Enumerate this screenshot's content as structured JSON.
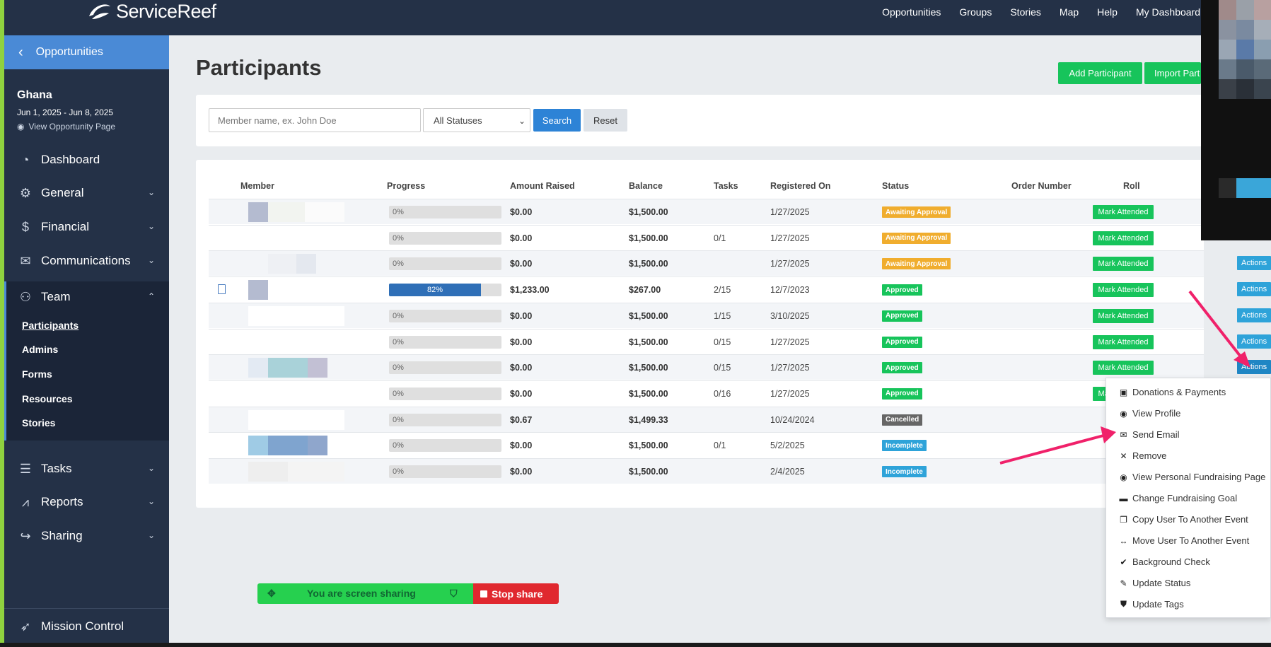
{
  "topbar": {
    "logo": "ServiceReef",
    "nav": [
      "Opportunities",
      "Groups",
      "Stories",
      "Map",
      "Help",
      "My Dashboard"
    ]
  },
  "sidebar": {
    "back_label": "Opportunities",
    "event_title": "Ghana",
    "event_dates": "Jun 1, 2025 - Jun 8, 2025",
    "event_link": "View Opportunity Page",
    "items": [
      {
        "label": "Dashboard",
        "icon": "dashboard-icon"
      },
      {
        "label": "General",
        "icon": "gear-icon"
      },
      {
        "label": "Financial",
        "icon": "dollar-icon"
      },
      {
        "label": "Communications",
        "icon": "envelope-icon"
      },
      {
        "label": "Team",
        "icon": "users-icon"
      },
      {
        "label": "Tasks",
        "icon": "tasks-icon"
      },
      {
        "label": "Reports",
        "icon": "chart-icon"
      },
      {
        "label": "Sharing",
        "icon": "share-icon"
      }
    ],
    "team_sub": [
      "Participants",
      "Admins",
      "Forms",
      "Resources",
      "Stories"
    ],
    "mission_control": "Mission Control"
  },
  "main": {
    "title": "Participants",
    "add_participant": "Add Participant",
    "import_participants": "Import Part",
    "search_placeholder": "Member name, ex. John Doe",
    "status_select": "All Statuses",
    "search_btn": "Search",
    "reset_btn": "Reset"
  },
  "table": {
    "headers": [
      "Member",
      "Progress",
      "Amount Raised",
      "Balance",
      "Tasks",
      "Registered On",
      "Status",
      "Order Number",
      "Roll"
    ],
    "mark_label": "Mark Attended",
    "actions_label": "Actions",
    "rows": [
      {
        "progress": "0%",
        "pct": 0,
        "raised": "$0.00",
        "balance": "$1,500.00",
        "tasks": "",
        "registered": "1/27/2025",
        "status": "Awaiting Approval",
        "status_color": "#f0ad2e"
      },
      {
        "progress": "0%",
        "pct": 0,
        "raised": "$0.00",
        "balance": "$1,500.00",
        "tasks": "0/1",
        "registered": "1/27/2025",
        "status": "Awaiting Approval",
        "status_color": "#f0ad2e"
      },
      {
        "progress": "0%",
        "pct": 0,
        "raised": "$0.00",
        "balance": "$1,500.00",
        "tasks": "",
        "registered": "1/27/2025",
        "status": "Awaiting Approval",
        "status_color": "#f0ad2e"
      },
      {
        "progress": "82%",
        "pct": 82,
        "raised": "$1,233.00",
        "balance": "$267.00",
        "tasks": "2/15",
        "registered": "12/7/2023",
        "status": "Approved",
        "status_color": "#17c45b"
      },
      {
        "progress": "0%",
        "pct": 0,
        "raised": "$0.00",
        "balance": "$1,500.00",
        "tasks": "1/15",
        "registered": "3/10/2025",
        "status": "Approved",
        "status_color": "#17c45b"
      },
      {
        "progress": "0%",
        "pct": 0,
        "raised": "$0.00",
        "balance": "$1,500.00",
        "tasks": "0/15",
        "registered": "1/27/2025",
        "status": "Approved",
        "status_color": "#17c45b"
      },
      {
        "progress": "0%",
        "pct": 0,
        "raised": "$0.00",
        "balance": "$1,500.00",
        "tasks": "0/15",
        "registered": "1/27/2025",
        "status": "Approved",
        "status_color": "#17c45b"
      },
      {
        "progress": "0%",
        "pct": 0,
        "raised": "$0.00",
        "balance": "$1,500.00",
        "tasks": "0/16",
        "registered": "1/27/2025",
        "status": "Approved",
        "status_color": "#17c45b"
      },
      {
        "progress": "0%",
        "pct": 0,
        "raised": "$0.67",
        "balance": "$1,499.33",
        "tasks": "",
        "registered": "10/24/2024",
        "status": "Cancelled",
        "status_color": "#666666"
      },
      {
        "progress": "0%",
        "pct": 0,
        "raised": "$0.00",
        "balance": "$1,500.00",
        "tasks": "0/1",
        "registered": "5/2/2025",
        "status": "Incomplete",
        "status_color": "#2ea3d9"
      },
      {
        "progress": "0%",
        "pct": 0,
        "raised": "$0.00",
        "balance": "$1,500.00",
        "tasks": "",
        "registered": "2/4/2025",
        "status": "Incomplete",
        "status_color": "#2ea3d9"
      }
    ]
  },
  "dropdown": [
    {
      "label": "Donations & Payments",
      "icon": "money-icon"
    },
    {
      "label": "View Profile",
      "icon": "eye-icon"
    },
    {
      "label": "Send Email",
      "icon": "envelope-icon"
    },
    {
      "label": "Remove",
      "icon": "x-icon"
    },
    {
      "label": "View Personal Fundraising Page",
      "icon": "eye-icon"
    },
    {
      "label": "Change Fundraising Goal",
      "icon": "card-icon"
    },
    {
      "label": "Copy User To Another Event",
      "icon": "copy-icon"
    },
    {
      "label": "Move User To Another Event",
      "icon": "arrows-icon"
    },
    {
      "label": "Background Check",
      "icon": "check-icon"
    },
    {
      "label": "Update Status",
      "icon": "pencil-icon"
    },
    {
      "label": "Update Tags",
      "icon": "tags-icon"
    }
  ],
  "share": {
    "text": "You are screen sharing",
    "stop": "Stop share"
  },
  "colors": {
    "navy": "#243147",
    "accent_blue": "#4a8ad6",
    "green": "#17c45b",
    "arrow": "#f0216a"
  }
}
